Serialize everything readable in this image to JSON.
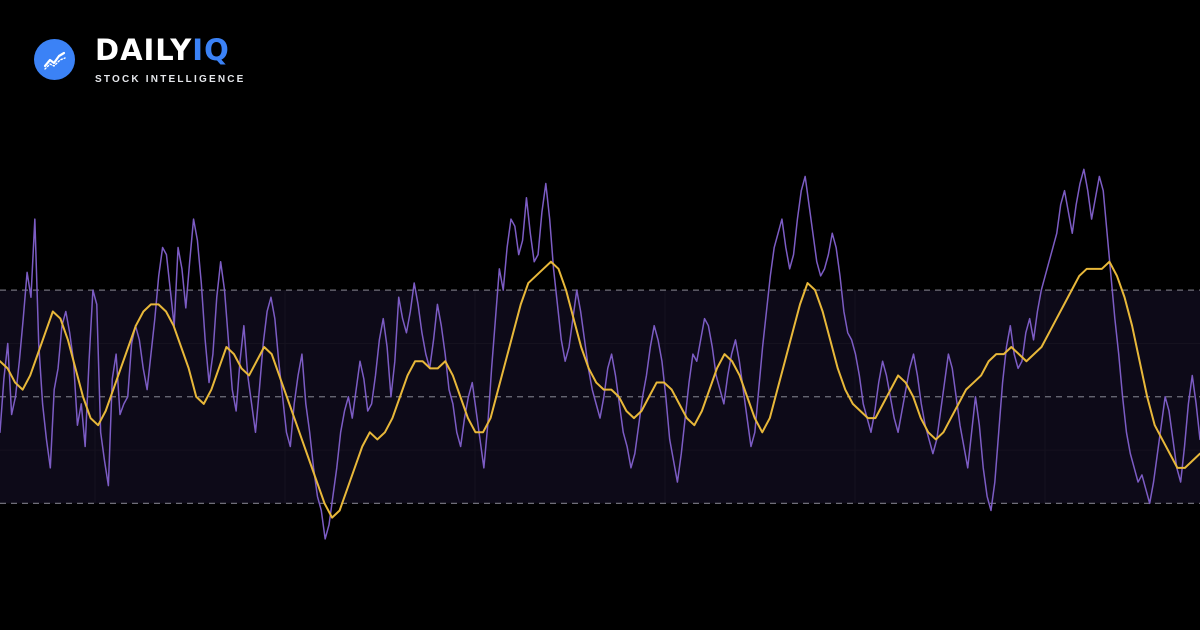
{
  "brand": {
    "name_primary": "DAILY",
    "name_accent": "IQ",
    "tagline": "STOCK INTELLIGENCE",
    "logo_icon": "trend-line-icon"
  },
  "colors": {
    "background": "#000000",
    "band_fill": "#0d0a18",
    "accent": "#3b82f6",
    "primary_line": "#7c5cc4",
    "signal_line": "#e8b83a",
    "reference_line": "#8a8a95"
  },
  "chart_data": {
    "type": "line",
    "title": "",
    "xlabel": "",
    "ylabel": "",
    "ylim": [
      -10,
      120
    ],
    "grid": true,
    "legend": "none",
    "reference_lines": [
      20,
      50,
      80
    ],
    "series": [
      {
        "values": [
          40,
          55,
          65,
          45,
          50,
          60,
          72,
          85,
          78,
          100,
          65,
          48,
          38,
          30,
          52,
          58,
          70,
          74,
          68,
          60,
          42,
          48,
          36,
          60,
          80,
          76,
          40,
          32,
          25,
          55,
          62,
          45,
          48,
          50,
          65,
          70,
          66,
          58,
          52,
          62,
          72,
          84,
          92,
          90,
          80,
          70,
          92,
          86,
          75,
          88,
          100,
          94,
          82,
          66,
          54,
          62,
          78,
          88,
          80,
          66,
          52,
          46,
          60,
          70,
          56,
          48,
          40,
          52,
          65,
          74,
          78,
          72,
          60,
          50,
          40,
          36,
          48,
          56,
          62,
          48,
          40,
          30,
          22,
          18,
          10,
          14,
          22,
          30,
          40,
          46,
          50,
          44,
          52,
          60,
          55,
          46,
          48,
          56,
          66,
          72,
          64,
          50,
          60,
          78,
          72,
          68,
          74,
          82,
          76,
          68,
          62,
          58,
          66,
          76,
          70,
          62,
          52,
          48,
          40,
          36,
          44,
          50,
          54,
          46,
          38,
          30,
          42,
          58,
          72,
          86,
          80,
          92,
          100,
          98,
          90,
          94,
          106,
          96,
          88,
          90,
          102,
          110,
          100,
          86,
          76,
          66,
          60,
          64,
          72,
          80,
          74,
          66,
          58,
          52,
          48,
          44,
          50,
          58,
          62,
          56,
          48,
          40,
          36,
          30,
          34,
          42,
          50,
          56,
          64,
          70,
          66,
          60,
          50,
          38,
          32,
          26,
          34,
          44,
          54,
          62,
          60,
          66,
          72,
          70,
          64,
          56,
          52,
          48,
          56,
          62,
          66,
          60,
          52,
          44,
          36,
          40,
          52,
          64,
          74,
          84,
          92,
          96,
          100,
          92,
          86,
          90,
          100,
          108,
          112,
          104,
          96,
          88,
          84,
          86,
          90,
          96,
          92,
          84,
          74,
          68,
          66,
          62,
          56,
          48,
          44,
          40,
          46,
          54,
          60,
          56,
          50,
          44,
          40,
          46,
          52,
          58,
          62,
          56,
          48,
          42,
          38,
          34,
          38,
          46,
          54,
          62,
          58,
          50,
          42,
          36,
          30,
          40,
          50,
          42,
          30,
          22,
          18,
          26,
          40,
          54,
          64,
          70,
          62,
          58,
          60,
          68,
          72,
          66,
          74,
          80,
          84,
          88,
          92,
          96,
          104,
          108,
          102,
          96,
          104,
          110,
          114,
          108,
          100,
          106,
          112,
          108,
          96,
          84,
          72,
          62,
          50,
          40,
          34,
          30,
          26,
          28,
          24,
          20,
          26,
          34,
          42,
          50,
          46,
          38,
          30,
          26,
          36,
          48,
          56,
          48,
          38
        ],
        "color": "#7c5cc4"
      },
      {
        "values": [
          60,
          58,
          54,
          52,
          56,
          62,
          68,
          74,
          72,
          66,
          58,
          50,
          44,
          42,
          46,
          52,
          58,
          64,
          70,
          74,
          76,
          76,
          74,
          70,
          64,
          58,
          50,
          48,
          52,
          58,
          64,
          62,
          58,
          56,
          60,
          64,
          62,
          56,
          50,
          44,
          38,
          32,
          26,
          20,
          16,
          18,
          24,
          30,
          36,
          40,
          38,
          40,
          44,
          50,
          56,
          60,
          60,
          58,
          58,
          60,
          56,
          50,
          44,
          40,
          40,
          44,
          52,
          60,
          68,
          76,
          82,
          84,
          86,
          88,
          86,
          80,
          72,
          64,
          58,
          54,
          52,
          52,
          50,
          46,
          44,
          46,
          50,
          54,
          54,
          52,
          48,
          44,
          42,
          46,
          52,
          58,
          62,
          60,
          56,
          50,
          44,
          40,
          44,
          52,
          60,
          68,
          76,
          82,
          80,
          74,
          66,
          58,
          52,
          48,
          46,
          44,
          44,
          48,
          52,
          56,
          54,
          50,
          44,
          40,
          38,
          40,
          44,
          48,
          52,
          54,
          56,
          60,
          62,
          62,
          64,
          62,
          60,
          62,
          64,
          68,
          72,
          76,
          80,
          84,
          86,
          86,
          86,
          88,
          84,
          78,
          70,
          60,
          50,
          42,
          38,
          34,
          30,
          30,
          32,
          34
        ],
        "color": "#e8b83a"
      }
    ]
  }
}
